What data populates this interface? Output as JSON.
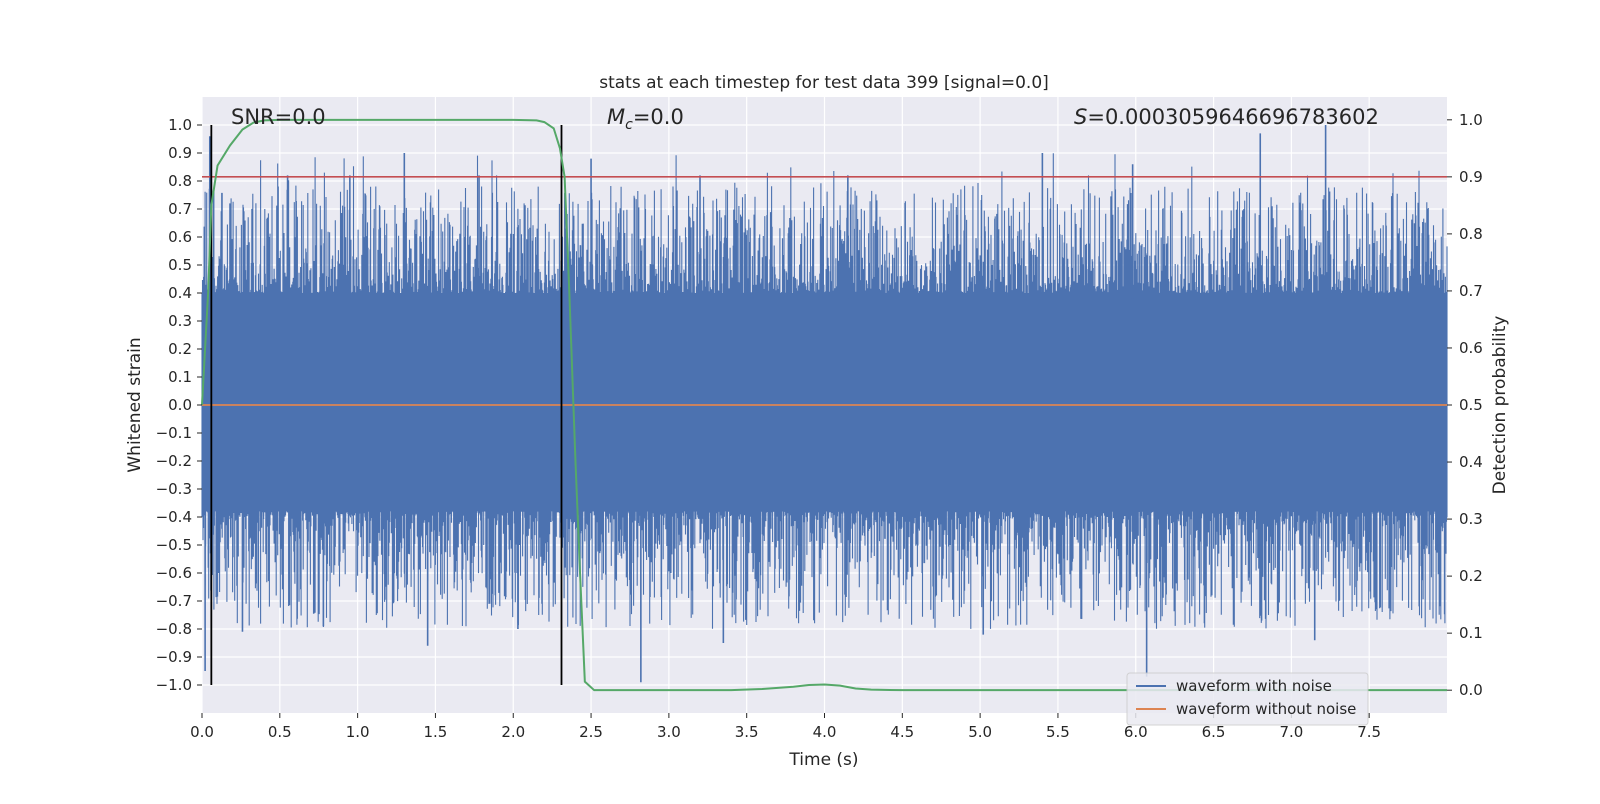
{
  "chart_data": {
    "type": "line",
    "title": "stats at each timestep for test data 399 [signal=0.0]",
    "xlabel": "Time (s)",
    "ylabel_left": "Whitened strain",
    "ylabel_right": "Detection probability",
    "xlim": [
      0.0,
      8.0
    ],
    "ylim_left": [
      -1.1,
      1.1
    ],
    "ylim_right": [
      -0.04,
      1.04
    ],
    "x_ticks": [
      "0.0",
      "0.5",
      "1.0",
      "1.5",
      "2.0",
      "2.5",
      "3.0",
      "3.5",
      "4.0",
      "4.5",
      "5.0",
      "5.5",
      "6.0",
      "6.5",
      "7.0",
      "7.5"
    ],
    "y_ticks_left": [
      "1.0",
      "0.9",
      "0.8",
      "0.7",
      "0.6",
      "0.5",
      "0.4",
      "0.3",
      "0.2",
      "0.1",
      "0.0",
      "−0.1",
      "−0.2",
      "−0.3",
      "−0.4",
      "−0.5",
      "−0.6",
      "−0.7",
      "−0.8",
      "−0.9",
      "−1.0"
    ],
    "y_ticks_right": [
      "1.0",
      "0.9",
      "0.8",
      "0.7",
      "0.6",
      "0.5",
      "0.4",
      "0.3",
      "0.2",
      "0.1",
      "0.0"
    ],
    "grid": true,
    "legend_position": "lower right",
    "annotations": {
      "snr": "SNR=0.0",
      "mc_label": "M",
      "mc_sub": "c",
      "mc_value": "=0.0",
      "s_label": "S",
      "s_value": "=0.0003059646696783602"
    },
    "vertical_lines_x": [
      0.06,
      2.31
    ],
    "threshold_line": {
      "axis": "right",
      "y": 0.9,
      "color": "#c44e52"
    },
    "series": [
      {
        "name": "waveform with noise",
        "axis": "left",
        "color": "#4c72b0",
        "description_note": "dense noise, amplitude mostly within ±0.4 with spikes to about ±1.0",
        "spikes": [
          {
            "x": 0.02,
            "y": -0.95
          },
          {
            "x": 0.05,
            "y": 0.96
          },
          {
            "x": 0.18,
            "y": 0.72
          },
          {
            "x": 0.26,
            "y": -0.81
          },
          {
            "x": 0.55,
            "y": 0.82
          },
          {
            "x": 0.78,
            "y": -0.79
          },
          {
            "x": 0.95,
            "y": 0.82
          },
          {
            "x": 1.3,
            "y": 0.9
          },
          {
            "x": 1.45,
            "y": -0.86
          },
          {
            "x": 1.78,
            "y": 0.82
          },
          {
            "x": 2.03,
            "y": -0.8
          },
          {
            "x": 2.5,
            "y": 0.88
          },
          {
            "x": 2.82,
            "y": -0.99
          },
          {
            "x": 3.2,
            "y": 0.82
          },
          {
            "x": 3.35,
            "y": -0.85
          },
          {
            "x": 4.15,
            "y": 0.82
          },
          {
            "x": 5.02,
            "y": -0.82
          },
          {
            "x": 5.4,
            "y": 0.9
          },
          {
            "x": 5.98,
            "y": 0.86
          },
          {
            "x": 6.07,
            "y": -0.97
          },
          {
            "x": 6.8,
            "y": 0.97
          },
          {
            "x": 7.22,
            "y": 1.0
          },
          {
            "x": 7.15,
            "y": -0.84
          }
        ]
      },
      {
        "name": "waveform without noise",
        "axis": "left",
        "color": "#dd8452",
        "points": [
          [
            0.0,
            0.0
          ],
          [
            8.0,
            0.0
          ]
        ]
      },
      {
        "name": "",
        "axis": "right",
        "color": "#55a868",
        "points": [
          [
            0.0,
            0.5
          ],
          [
            0.04,
            0.7
          ],
          [
            0.06,
            0.85
          ],
          [
            0.1,
            0.92
          ],
          [
            0.18,
            0.955
          ],
          [
            0.26,
            0.983
          ],
          [
            0.33,
            0.995
          ],
          [
            0.4,
            0.999
          ],
          [
            0.5,
            1.0
          ],
          [
            1.0,
            1.0
          ],
          [
            1.5,
            1.0
          ],
          [
            2.0,
            1.0
          ],
          [
            2.15,
            0.999
          ],
          [
            2.2,
            0.996
          ],
          [
            2.26,
            0.985
          ],
          [
            2.3,
            0.95
          ],
          [
            2.33,
            0.9
          ],
          [
            2.36,
            0.7
          ],
          [
            2.4,
            0.4
          ],
          [
            2.43,
            0.2
          ],
          [
            2.46,
            0.015
          ],
          [
            2.52,
            0.0
          ],
          [
            3.0,
            0.0
          ],
          [
            3.4,
            0.0
          ],
          [
            3.6,
            0.002
          ],
          [
            3.8,
            0.006
          ],
          [
            3.9,
            0.009
          ],
          [
            4.0,
            0.01
          ],
          [
            4.1,
            0.008
          ],
          [
            4.2,
            0.003
          ],
          [
            4.3,
            0.001
          ],
          [
            4.5,
            0.0
          ],
          [
            8.0,
            0.0
          ]
        ]
      }
    ]
  }
}
